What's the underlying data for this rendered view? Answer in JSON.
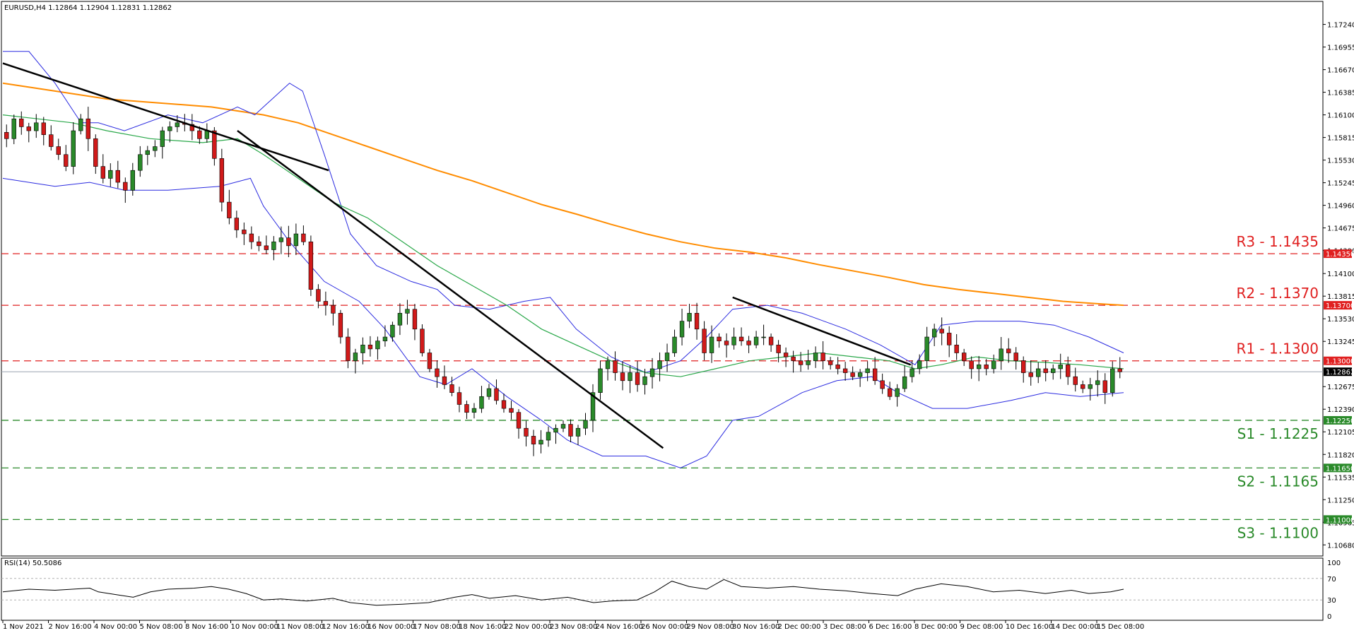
{
  "header": {
    "symbol_line": "EURUSD,H4  1.12864 1.12904 1.12831 1.12862",
    "rsi_label": "RSI(14) 50.5086"
  },
  "colors": {
    "bull": "#2a8a2a",
    "bear": "#d11a1a",
    "bb": "#2b2be0",
    "ma_mid": "#2aa84a",
    "ma_long": "#ff8c00",
    "trendline": "#000000",
    "resistance": "#e02020",
    "support": "#2a8a2a",
    "price_tag": "#000000"
  },
  "chart_data": [
    {
      "type": "candlestick",
      "title": "EURUSD,H4",
      "ylim": [
        1.1054,
        1.1753
      ],
      "y_ticks": [
        "1.17240",
        "1.16955",
        "1.16670",
        "1.16385",
        "1.16100",
        "1.15815",
        "1.15530",
        "1.15245",
        "1.14960",
        "1.14675",
        "1.14390",
        "1.14100",
        "1.13815",
        "1.13530",
        "1.13245",
        "1.12675",
        "1.12390",
        "1.12105",
        "1.11820",
        "1.11535",
        "1.11250",
        "1.10965",
        "1.10680"
      ],
      "x_labels": [
        "1 Nov 2021",
        "2 Nov 16:00",
        "4 Nov 00:00",
        "5 Nov 08:00",
        "8 Nov 16:00",
        "10 Nov 00:00",
        "11 Nov 08:00",
        "12 Nov 16:00",
        "16 Nov 00:00",
        "17 Nov 08:00",
        "18 Nov 16:00",
        "22 Nov 00:00",
        "23 Nov 08:00",
        "24 Nov 16:00",
        "26 Nov 00:00",
        "29 Nov 08:00",
        "30 Nov 16:00",
        "2 Dec 00:00",
        "3 Dec 08:00",
        "6 Dec 16:00",
        "8 Dec 00:00",
        "9 Dec 08:00",
        "10 Dec 16:00",
        "14 Dec 00:00",
        "15 Dec 08:00"
      ],
      "current_price": "1.12862",
      "levels": [
        {
          "name": "R3",
          "label": "R3 - 1.1435",
          "value": 1.1435,
          "tag": "1.14350",
          "kind": "resistance"
        },
        {
          "name": "R2",
          "label": "R2 - 1.1370",
          "value": 1.137,
          "tag": "1.13700",
          "kind": "resistance"
        },
        {
          "name": "R1",
          "label": "R1 - 1.1300",
          "value": 1.13,
          "tag": "1.13000",
          "kind": "resistance"
        },
        {
          "name": "S1",
          "label": "S1 - 1.1225",
          "value": 1.1225,
          "tag": "1.12250",
          "kind": "support"
        },
        {
          "name": "S2",
          "label": "S2 - 1.1165",
          "value": 1.1165,
          "tag": "1.11650",
          "kind": "support"
        },
        {
          "name": "S3",
          "label": "S3 - 1.1100",
          "value": 1.11,
          "tag": "1.11000",
          "kind": "support"
        }
      ],
      "close_path": [
        1.158,
        1.1605,
        1.1595,
        1.159,
        1.16,
        1.1585,
        1.157,
        1.156,
        1.1545,
        1.159,
        1.1605,
        1.158,
        1.1545,
        1.153,
        1.154,
        1.1525,
        1.1515,
        1.154,
        1.156,
        1.1565,
        1.157,
        1.159,
        1.1595,
        1.16,
        1.1598,
        1.159,
        1.158,
        1.159,
        1.1555,
        1.15,
        1.148,
        1.1465,
        1.146,
        1.145,
        1.1445,
        1.144,
        1.145,
        1.1455,
        1.1445,
        1.146,
        1.145,
        1.139,
        1.1375,
        1.137,
        1.136,
        1.133,
        1.13,
        1.131,
        1.132,
        1.1315,
        1.1325,
        1.133,
        1.1345,
        1.136,
        1.1365,
        1.134,
        1.131,
        1.129,
        1.128,
        1.127,
        1.126,
        1.1245,
        1.1235,
        1.124,
        1.1255,
        1.1265,
        1.125,
        1.124,
        1.1235,
        1.1215,
        1.1205,
        1.1195,
        1.12,
        1.121,
        1.1215,
        1.122,
        1.1205,
        1.1215,
        1.1225,
        1.126,
        1.129,
        1.13,
        1.1285,
        1.1275,
        1.1285,
        1.127,
        1.128,
        1.129,
        1.13,
        1.131,
        1.133,
        1.135,
        1.136,
        1.134,
        1.131,
        1.133,
        1.1325,
        1.132,
        1.133,
        1.1325,
        1.132,
        1.133,
        1.133,
        1.132,
        1.131,
        1.1305,
        1.13,
        1.1295,
        1.13,
        1.131,
        1.13,
        1.1295,
        1.129,
        1.1285,
        1.128,
        1.1285,
        1.129,
        1.1275,
        1.1265,
        1.1255,
        1.1265,
        1.128,
        1.129,
        1.13,
        1.133,
        1.134,
        1.1335,
        1.132,
        1.131,
        1.13,
        1.129,
        1.1295,
        1.129,
        1.13,
        1.1315,
        1.131,
        1.13,
        1.1285,
        1.128,
        1.129,
        1.1285,
        1.129,
        1.1295,
        1.128,
        1.127,
        1.1265,
        1.127,
        1.1275,
        1.126,
        1.129,
        1.12862
      ],
      "bollinger": {
        "upper": [
          [
            0,
            1.169
          ],
          [
            30,
            1.169
          ],
          [
            60,
            1.165
          ],
          [
            90,
            1.16
          ],
          [
            110,
            1.16
          ],
          [
            140,
            1.159
          ],
          [
            190,
            1.161
          ],
          [
            230,
            1.16
          ],
          [
            270,
            1.162
          ],
          [
            290,
            1.161
          ],
          [
            330,
            1.165
          ],
          [
            345,
            1.164
          ],
          [
            370,
            1.156
          ],
          [
            400,
            1.146
          ],
          [
            430,
            1.142
          ],
          [
            470,
            1.14
          ],
          [
            500,
            1.139
          ],
          [
            520,
            1.137
          ],
          [
            560,
            1.1365
          ],
          [
            600,
            1.1375
          ],
          [
            630,
            1.138
          ],
          [
            660,
            1.134
          ],
          [
            700,
            1.1305
          ],
          [
            740,
            1.1285
          ],
          [
            780,
            1.13
          ],
          [
            810,
            1.133
          ],
          [
            840,
            1.1365
          ],
          [
            880,
            1.137
          ],
          [
            920,
            1.136
          ],
          [
            970,
            1.134
          ],
          [
            1010,
            1.132
          ],
          [
            1050,
            1.1295
          ],
          [
            1080,
            1.1345
          ],
          [
            1120,
            1.135
          ],
          [
            1170,
            1.135
          ],
          [
            1210,
            1.1345
          ],
          [
            1250,
            1.133
          ],
          [
            1290,
            1.131
          ]
        ],
        "lower": [
          [
            0,
            1.153
          ],
          [
            30,
            1.1525
          ],
          [
            60,
            1.152
          ],
          [
            100,
            1.1525
          ],
          [
            140,
            1.1515
          ],
          [
            190,
            1.1515
          ],
          [
            250,
            1.152
          ],
          [
            285,
            1.153
          ],
          [
            300,
            1.1495
          ],
          [
            330,
            1.145
          ],
          [
            370,
            1.14
          ],
          [
            410,
            1.1375
          ],
          [
            440,
            1.134
          ],
          [
            480,
            1.128
          ],
          [
            510,
            1.127
          ],
          [
            540,
            1.129
          ],
          [
            580,
            1.1255
          ],
          [
            620,
            1.1225
          ],
          [
            650,
            1.12
          ],
          [
            690,
            1.118
          ],
          [
            740,
            1.118
          ],
          [
            780,
            1.1165
          ],
          [
            810,
            1.118
          ],
          [
            840,
            1.1225
          ],
          [
            870,
            1.123
          ],
          [
            920,
            1.126
          ],
          [
            960,
            1.1275
          ],
          [
            1000,
            1.128
          ],
          [
            1030,
            1.126
          ],
          [
            1070,
            1.124
          ],
          [
            1110,
            1.124
          ],
          [
            1160,
            1.125
          ],
          [
            1200,
            1.126
          ],
          [
            1240,
            1.1255
          ],
          [
            1290,
            1.126
          ]
        ],
        "middle": [
          [
            0,
            1.161
          ],
          [
            40,
            1.1605
          ],
          [
            80,
            1.16
          ],
          [
            120,
            1.159
          ],
          [
            170,
            1.158
          ],
          [
            230,
            1.1575
          ],
          [
            270,
            1.158
          ],
          [
            300,
            1.156
          ],
          [
            340,
            1.153
          ],
          [
            380,
            1.15
          ],
          [
            420,
            1.148
          ],
          [
            460,
            1.145
          ],
          [
            500,
            1.142
          ],
          [
            540,
            1.1395
          ],
          [
            580,
            1.137
          ],
          [
            620,
            1.134
          ],
          [
            660,
            1.132
          ],
          [
            700,
            1.13
          ],
          [
            740,
            1.1285
          ],
          [
            780,
            1.128
          ],
          [
            820,
            1.129
          ],
          [
            860,
            1.13
          ],
          [
            900,
            1.1305
          ],
          [
            940,
            1.131
          ],
          [
            980,
            1.1305
          ],
          [
            1020,
            1.13
          ],
          [
            1050,
            1.129
          ],
          [
            1080,
            1.1295
          ],
          [
            1120,
            1.1305
          ],
          [
            1160,
            1.13
          ],
          [
            1200,
            1.1298
          ],
          [
            1240,
            1.1295
          ],
          [
            1290,
            1.129
          ]
        ]
      },
      "ma_long": [
        [
          0,
          1.165
        ],
        [
          60,
          1.164
        ],
        [
          120,
          1.163
        ],
        [
          180,
          1.1625
        ],
        [
          240,
          1.162
        ],
        [
          300,
          1.161
        ],
        [
          340,
          1.16
        ],
        [
          380,
          1.1585
        ],
        [
          420,
          1.157
        ],
        [
          460,
          1.1555
        ],
        [
          500,
          1.154
        ],
        [
          540,
          1.1527
        ],
        [
          580,
          1.1512
        ],
        [
          620,
          1.1497
        ],
        [
          660,
          1.1485
        ],
        [
          700,
          1.1472
        ],
        [
          740,
          1.146
        ],
        [
          780,
          1.145
        ],
        [
          820,
          1.1442
        ],
        [
          860,
          1.1437
        ],
        [
          900,
          1.143
        ],
        [
          940,
          1.1421
        ],
        [
          980,
          1.1413
        ],
        [
          1020,
          1.1405
        ],
        [
          1060,
          1.1396
        ],
        [
          1100,
          1.139
        ],
        [
          1140,
          1.1385
        ],
        [
          1180,
          1.138
        ],
        [
          1220,
          1.1375
        ],
        [
          1260,
          1.1372
        ],
        [
          1290,
          1.137
        ]
      ],
      "trendlines": [
        [
          [
            0,
            1.1675
          ],
          [
            375,
            1.154
          ]
        ],
        [
          [
            270,
            1.159
          ],
          [
            760,
            1.119
          ]
        ],
        [
          [
            840,
            1.138
          ],
          [
            1045,
            1.1295
          ]
        ]
      ]
    },
    {
      "type": "line",
      "title": "RSI(14) 50.5086",
      "ylim": [
        0,
        100
      ],
      "y_ticks": [
        "100",
        "70",
        "30",
        "0"
      ],
      "series": [
        {
          "values": [
            [
              0,
              45
            ],
            [
              30,
              50
            ],
            [
              60,
              48
            ],
            [
              100,
              52
            ],
            [
              110,
              45
            ],
            [
              130,
              40
            ],
            [
              150,
              35
            ],
            [
              170,
              45
            ],
            [
              190,
              50
            ],
            [
              220,
              52
            ],
            [
              240,
              55
            ],
            [
              260,
              50
            ],
            [
              280,
              42
            ],
            [
              300,
              30
            ],
            [
              320,
              32
            ],
            [
              350,
              28
            ],
            [
              380,
              33
            ],
            [
              400,
              25
            ],
            [
              430,
              20
            ],
            [
              460,
              22
            ],
            [
              490,
              25
            ],
            [
              520,
              35
            ],
            [
              540,
              40
            ],
            [
              560,
              33
            ],
            [
              590,
              38
            ],
            [
              620,
              30
            ],
            [
              650,
              35
            ],
            [
              680,
              25
            ],
            [
              700,
              28
            ],
            [
              730,
              30
            ],
            [
              750,
              45
            ],
            [
              770,
              65
            ],
            [
              790,
              55
            ],
            [
              810,
              50
            ],
            [
              830,
              68
            ],
            [
              850,
              55
            ],
            [
              880,
              52
            ],
            [
              910,
              55
            ],
            [
              940,
              50
            ],
            [
              970,
              47
            ],
            [
              1000,
              42
            ],
            [
              1030,
              38
            ],
            [
              1050,
              50
            ],
            [
              1080,
              60
            ],
            [
              1110,
              55
            ],
            [
              1140,
              45
            ],
            [
              1170,
              48
            ],
            [
              1200,
              42
            ],
            [
              1230,
              48
            ],
            [
              1250,
              42
            ],
            [
              1275,
              45
            ],
            [
              1290,
              50
            ]
          ]
        }
      ]
    }
  ]
}
